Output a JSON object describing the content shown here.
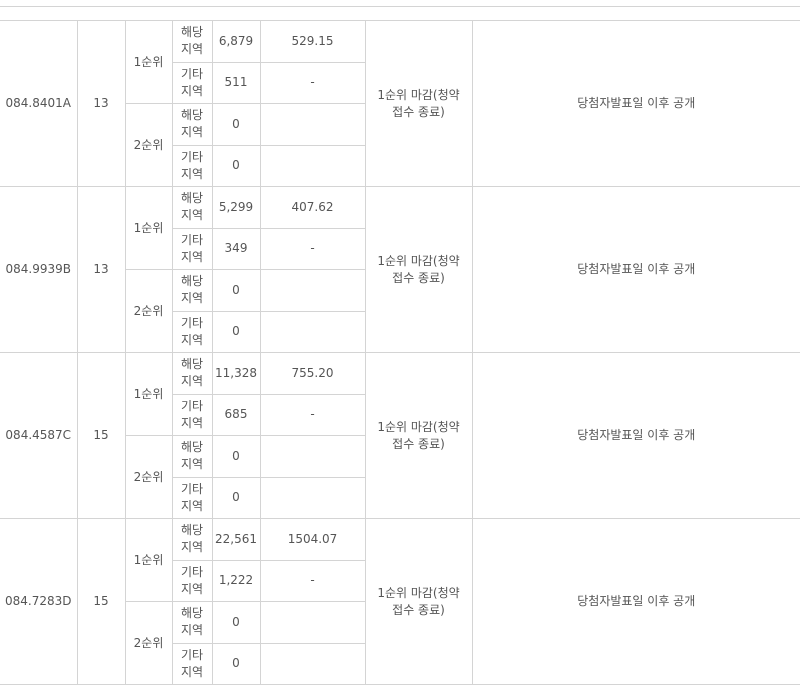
{
  "groups": [
    {
      "type": "084.8401A",
      "supply": "13",
      "rank1": {
        "label": "1순위",
        "local": {
          "area": "해당\n지역",
          "apps": "6,879",
          "rate": "529.15"
        },
        "other": {
          "area": "기타\n지역",
          "apps": "511",
          "rate": "-"
        }
      },
      "rank2": {
        "label": "2순위",
        "local": {
          "area": "해당\n지역",
          "apps": "0"
        },
        "other": {
          "area": "기타\n지역",
          "apps": "0"
        }
      },
      "status": "1순위 마감(청약\n접수 종료)",
      "result": "당첨자발표일 이후 공개"
    },
    {
      "type": "084.9939B",
      "supply": "13",
      "rank1": {
        "label": "1순위",
        "local": {
          "area": "해당\n지역",
          "apps": "5,299",
          "rate": "407.62"
        },
        "other": {
          "area": "기타\n지역",
          "apps": "349",
          "rate": "-"
        }
      },
      "rank2": {
        "label": "2순위",
        "local": {
          "area": "해당\n지역",
          "apps": "0"
        },
        "other": {
          "area": "기타\n지역",
          "apps": "0"
        }
      },
      "status": "1순위 마감(청약\n접수 종료)",
      "result": "당첨자발표일 이후 공개"
    },
    {
      "type": "084.4587C",
      "supply": "15",
      "rank1": {
        "label": "1순위",
        "local": {
          "area": "해당\n지역",
          "apps": "11,328",
          "rate": "755.20"
        },
        "other": {
          "area": "기타\n지역",
          "apps": "685",
          "rate": "-"
        }
      },
      "rank2": {
        "label": "2순위",
        "local": {
          "area": "해당\n지역",
          "apps": "0"
        },
        "other": {
          "area": "기타\n지역",
          "apps": "0"
        }
      },
      "status": "1순위 마감(청약\n접수 종료)",
      "result": "당첨자발표일 이후 공개"
    },
    {
      "type": "084.7283D",
      "supply": "15",
      "rank1": {
        "label": "1순위",
        "local": {
          "area": "해당\n지역",
          "apps": "22,561",
          "rate": "1504.07"
        },
        "other": {
          "area": "기타\n지역",
          "apps": "1,222",
          "rate": "-"
        }
      },
      "rank2": {
        "label": "2순위",
        "local": {
          "area": "해당\n지역",
          "apps": "0"
        },
        "other": {
          "area": "기타\n지역",
          "apps": "0"
        }
      },
      "status": "1순위 마감(청약\n접수 종료)",
      "result": "당첨자발표일 이후 공개"
    }
  ]
}
